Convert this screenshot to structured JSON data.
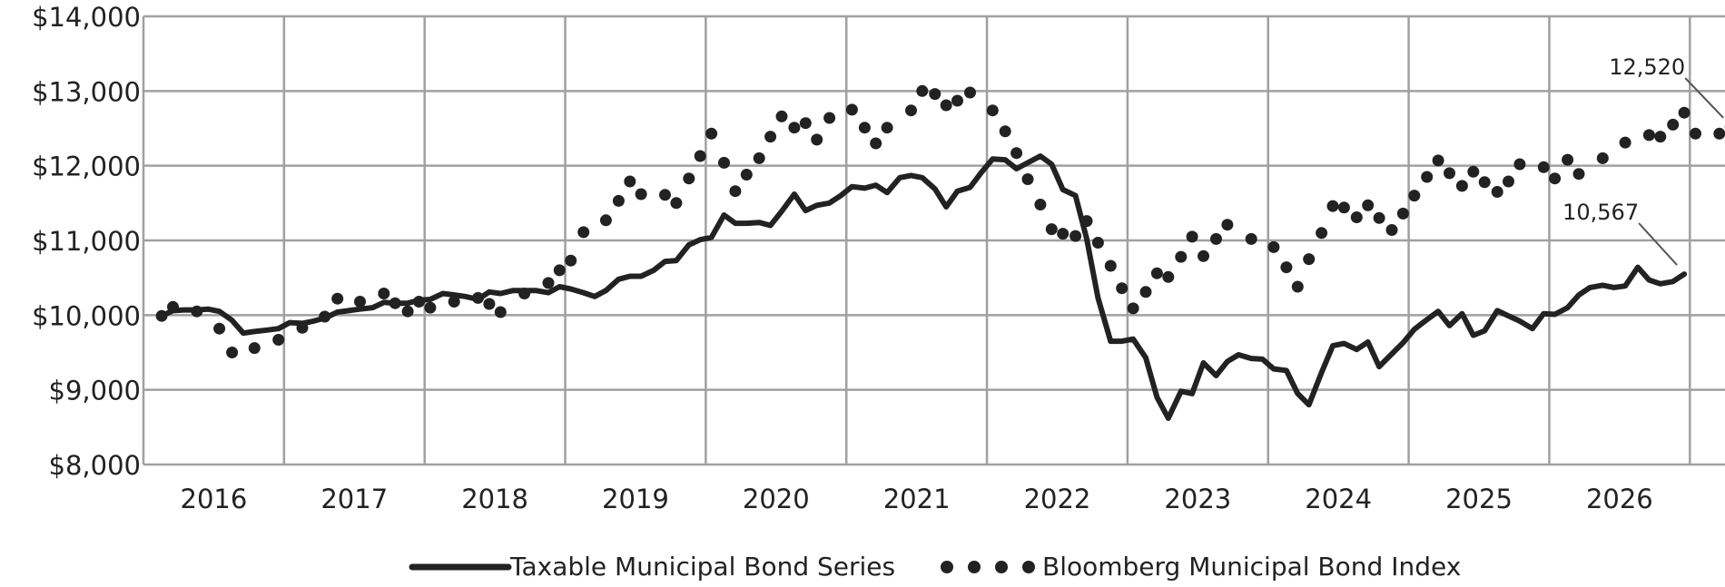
{
  "chart_data": {
    "type": "line",
    "x_label": "",
    "y_label": "",
    "ylim": [
      8000,
      14000
    ],
    "y_ticks": [
      {
        "value": 8000,
        "label": "$8,000"
      },
      {
        "value": 9000,
        "label": "$9,000"
      },
      {
        "value": 10000,
        "label": "$10,000"
      },
      {
        "value": 11000,
        "label": "$11,000"
      },
      {
        "value": 12000,
        "label": "$12,000"
      },
      {
        "value": 13000,
        "label": "$13,000"
      },
      {
        "value": 14000,
        "label": "$14,000"
      }
    ],
    "x_range": [
      2015.5,
      2026.75
    ],
    "x_ticks": [
      {
        "value": 2016,
        "label": "2016"
      },
      {
        "value": 2017,
        "label": "2017"
      },
      {
        "value": 2018,
        "label": "2018"
      },
      {
        "value": 2019,
        "label": "2019"
      },
      {
        "value": 2020,
        "label": "2020"
      },
      {
        "value": 2021,
        "label": "2021"
      },
      {
        "value": 2022,
        "label": "2022"
      },
      {
        "value": 2023,
        "label": "2023"
      },
      {
        "value": 2024,
        "label": "2024"
      },
      {
        "value": 2025,
        "label": "2025"
      },
      {
        "value": 2026,
        "label": "2026"
      }
    ],
    "grid": true,
    "legend_position": "bottom",
    "series": [
      {
        "name": "Taxable Municipal Bond Series",
        "style": "solid",
        "color": "#222222",
        "points": [
          [
            2015.63,
            9990
          ],
          [
            2015.71,
            10060
          ],
          [
            2015.79,
            10070
          ],
          [
            2015.88,
            10070
          ],
          [
            2015.96,
            10080
          ],
          [
            2016.04,
            10050
          ],
          [
            2016.13,
            9930
          ],
          [
            2016.21,
            9760
          ],
          [
            2016.29,
            9780
          ],
          [
            2016.38,
            9800
          ],
          [
            2016.46,
            9820
          ],
          [
            2016.54,
            9900
          ],
          [
            2016.63,
            9890
          ],
          [
            2016.71,
            9920
          ],
          [
            2016.79,
            9960
          ],
          [
            2016.88,
            10040
          ],
          [
            2016.96,
            10060
          ],
          [
            2017.04,
            10080
          ],
          [
            2017.13,
            10100
          ],
          [
            2017.21,
            10170
          ],
          [
            2017.29,
            10160
          ],
          [
            2017.38,
            10160
          ],
          [
            2017.46,
            10200
          ],
          [
            2017.54,
            10210
          ],
          [
            2017.63,
            10290
          ],
          [
            2017.71,
            10270
          ],
          [
            2017.79,
            10250
          ],
          [
            2017.88,
            10210
          ],
          [
            2017.96,
            10310
          ],
          [
            2018.04,
            10290
          ],
          [
            2018.13,
            10330
          ],
          [
            2018.21,
            10330
          ],
          [
            2018.29,
            10330
          ],
          [
            2018.38,
            10300
          ],
          [
            2018.46,
            10380
          ],
          [
            2018.54,
            10350
          ],
          [
            2018.63,
            10300
          ],
          [
            2018.71,
            10250
          ],
          [
            2018.79,
            10330
          ],
          [
            2018.88,
            10480
          ],
          [
            2018.96,
            10520
          ],
          [
            2019.04,
            10520
          ],
          [
            2019.13,
            10600
          ],
          [
            2019.21,
            10720
          ],
          [
            2019.29,
            10730
          ],
          [
            2019.38,
            10940
          ],
          [
            2019.46,
            11010
          ],
          [
            2019.54,
            11040
          ],
          [
            2019.63,
            11340
          ],
          [
            2019.71,
            11230
          ],
          [
            2019.79,
            11230
          ],
          [
            2019.88,
            11240
          ],
          [
            2019.96,
            11200
          ],
          [
            2020.04,
            11390
          ],
          [
            2020.13,
            11620
          ],
          [
            2020.21,
            11400
          ],
          [
            2020.29,
            11470
          ],
          [
            2020.38,
            11500
          ],
          [
            2020.46,
            11600
          ],
          [
            2020.54,
            11720
          ],
          [
            2020.63,
            11700
          ],
          [
            2020.71,
            11740
          ],
          [
            2020.79,
            11640
          ],
          [
            2020.88,
            11840
          ],
          [
            2020.96,
            11870
          ],
          [
            2021.04,
            11840
          ],
          [
            2021.13,
            11690
          ],
          [
            2021.21,
            11450
          ],
          [
            2021.29,
            11660
          ],
          [
            2021.38,
            11710
          ],
          [
            2021.46,
            11910
          ],
          [
            2021.54,
            12090
          ],
          [
            2021.63,
            12080
          ],
          [
            2021.71,
            11960
          ],
          [
            2021.79,
            12040
          ],
          [
            2021.88,
            12130
          ],
          [
            2021.96,
            12020
          ],
          [
            2022.04,
            11680
          ],
          [
            2022.13,
            11600
          ],
          [
            2022.21,
            11020
          ],
          [
            2022.29,
            10230
          ],
          [
            2022.38,
            9650
          ],
          [
            2022.46,
            9650
          ],
          [
            2022.54,
            9680
          ],
          [
            2022.63,
            9430
          ],
          [
            2022.71,
            8900
          ],
          [
            2022.79,
            8620
          ],
          [
            2022.88,
            8980
          ],
          [
            2022.96,
            8950
          ],
          [
            2023.04,
            9360
          ],
          [
            2023.13,
            9190
          ],
          [
            2023.21,
            9380
          ],
          [
            2023.29,
            9470
          ],
          [
            2023.38,
            9420
          ],
          [
            2023.46,
            9410
          ],
          [
            2023.54,
            9280
          ],
          [
            2023.63,
            9260
          ],
          [
            2023.71,
            8950
          ],
          [
            2023.79,
            8800
          ],
          [
            2023.88,
            9230
          ],
          [
            2023.96,
            9590
          ],
          [
            2024.04,
            9620
          ],
          [
            2024.13,
            9540
          ],
          [
            2024.21,
            9640
          ],
          [
            2024.29,
            9310
          ],
          [
            2024.38,
            9480
          ],
          [
            2024.46,
            9630
          ],
          [
            2024.54,
            9810
          ],
          [
            2024.63,
            9940
          ],
          [
            2024.71,
            10050
          ],
          [
            2024.79,
            9860
          ],
          [
            2024.88,
            10020
          ],
          [
            2024.96,
            9730
          ],
          [
            2025.04,
            9790
          ],
          [
            2025.13,
            10060
          ],
          [
            2025.21,
            9990
          ],
          [
            2025.29,
            9920
          ],
          [
            2025.38,
            9820
          ],
          [
            2025.46,
            10020
          ],
          [
            2025.54,
            10010
          ],
          [
            2025.63,
            10100
          ],
          [
            2025.71,
            10270
          ],
          [
            2025.79,
            10370
          ],
          [
            2025.88,
            10400
          ],
          [
            2025.96,
            10370
          ],
          [
            2026.04,
            10390
          ],
          [
            2026.13,
            10640
          ],
          [
            2026.21,
            10470
          ],
          [
            2026.29,
            10420
          ],
          [
            2026.38,
            10450
          ],
          [
            2026.46,
            10550
          ]
        ],
        "end_label": "10,567"
      },
      {
        "name": "Bloomberg Municipal Bond Index",
        "style": "dotted",
        "color": "#222222",
        "points": [
          [
            2015.63,
            9990
          ],
          [
            2015.71,
            10110
          ],
          [
            2015.88,
            10050
          ],
          [
            2016.04,
            9820
          ],
          [
            2016.13,
            9500
          ],
          [
            2016.29,
            9560
          ],
          [
            2016.46,
            9670
          ],
          [
            2016.63,
            9830
          ],
          [
            2016.79,
            9980
          ],
          [
            2016.88,
            10220
          ],
          [
            2017.04,
            10180
          ],
          [
            2017.21,
            10290
          ],
          [
            2017.29,
            10160
          ],
          [
            2017.38,
            10050
          ],
          [
            2017.46,
            10180
          ],
          [
            2017.54,
            10100
          ],
          [
            2017.71,
            10180
          ],
          [
            2017.88,
            10230
          ],
          [
            2017.96,
            10150
          ],
          [
            2018.04,
            10040
          ],
          [
            2018.21,
            10290
          ],
          [
            2018.38,
            10430
          ],
          [
            2018.46,
            10600
          ],
          [
            2018.54,
            10730
          ],
          [
            2018.63,
            11110
          ],
          [
            2018.79,
            11270
          ],
          [
            2018.88,
            11530
          ],
          [
            2018.96,
            11790
          ],
          [
            2019.04,
            11620
          ],
          [
            2019.21,
            11610
          ],
          [
            2019.29,
            11500
          ],
          [
            2019.38,
            11830
          ],
          [
            2019.46,
            12130
          ],
          [
            2019.54,
            12430
          ],
          [
            2019.63,
            12040
          ],
          [
            2019.71,
            11660
          ],
          [
            2019.79,
            11880
          ],
          [
            2019.88,
            12100
          ],
          [
            2019.96,
            12390
          ],
          [
            2020.04,
            12660
          ],
          [
            2020.13,
            12510
          ],
          [
            2020.21,
            12570
          ],
          [
            2020.29,
            12350
          ],
          [
            2020.38,
            12640
          ],
          [
            2020.54,
            12750
          ],
          [
            2020.63,
            12510
          ],
          [
            2020.71,
            12300
          ],
          [
            2020.79,
            12510
          ],
          [
            2020.96,
            12740
          ],
          [
            2021.04,
            13000
          ],
          [
            2021.13,
            12960
          ],
          [
            2021.21,
            12810
          ],
          [
            2021.29,
            12870
          ],
          [
            2021.38,
            12980
          ],
          [
            2021.54,
            12740
          ],
          [
            2021.63,
            12460
          ],
          [
            2021.71,
            12170
          ],
          [
            2021.79,
            11820
          ],
          [
            2021.88,
            11480
          ],
          [
            2021.96,
            11150
          ],
          [
            2022.04,
            11090
          ],
          [
            2022.13,
            11060
          ],
          [
            2022.21,
            11260
          ],
          [
            2022.29,
            10970
          ],
          [
            2022.38,
            10660
          ],
          [
            2022.46,
            10360
          ],
          [
            2022.54,
            10090
          ],
          [
            2022.63,
            10310
          ],
          [
            2022.71,
            10560
          ],
          [
            2022.79,
            10510
          ],
          [
            2022.88,
            10780
          ],
          [
            2022.96,
            11050
          ],
          [
            2023.04,
            10790
          ],
          [
            2023.13,
            11020
          ],
          [
            2023.21,
            11210
          ],
          [
            2023.38,
            11020
          ],
          [
            2023.54,
            10910
          ],
          [
            2023.63,
            10640
          ],
          [
            2023.71,
            10380
          ],
          [
            2023.79,
            10750
          ],
          [
            2023.88,
            11100
          ],
          [
            2023.96,
            11460
          ],
          [
            2024.04,
            11440
          ],
          [
            2024.13,
            11310
          ],
          [
            2024.21,
            11470
          ],
          [
            2024.29,
            11300
          ],
          [
            2024.38,
            11140
          ],
          [
            2024.46,
            11360
          ],
          [
            2024.54,
            11600
          ],
          [
            2024.63,
            11850
          ],
          [
            2024.71,
            12070
          ],
          [
            2024.79,
            11900
          ],
          [
            2024.88,
            11730
          ],
          [
            2024.96,
            11920
          ],
          [
            2025.04,
            11780
          ],
          [
            2025.13,
            11650
          ],
          [
            2025.21,
            11790
          ],
          [
            2025.29,
            12020
          ],
          [
            2025.46,
            11980
          ],
          [
            2025.54,
            11830
          ],
          [
            2025.63,
            12080
          ],
          [
            2025.71,
            11890
          ],
          [
            2025.88,
            12100
          ],
          [
            2026.04,
            12310
          ],
          [
            2026.21,
            12410
          ],
          [
            2026.29,
            12390
          ],
          [
            2026.38,
            12550
          ],
          [
            2026.46,
            12710
          ],
          [
            2026.54,
            12430
          ],
          [
            2026.71,
            12430
          ],
          [
            2026.79,
            12520
          ]
        ],
        "end_label": "12,520"
      }
    ]
  }
}
